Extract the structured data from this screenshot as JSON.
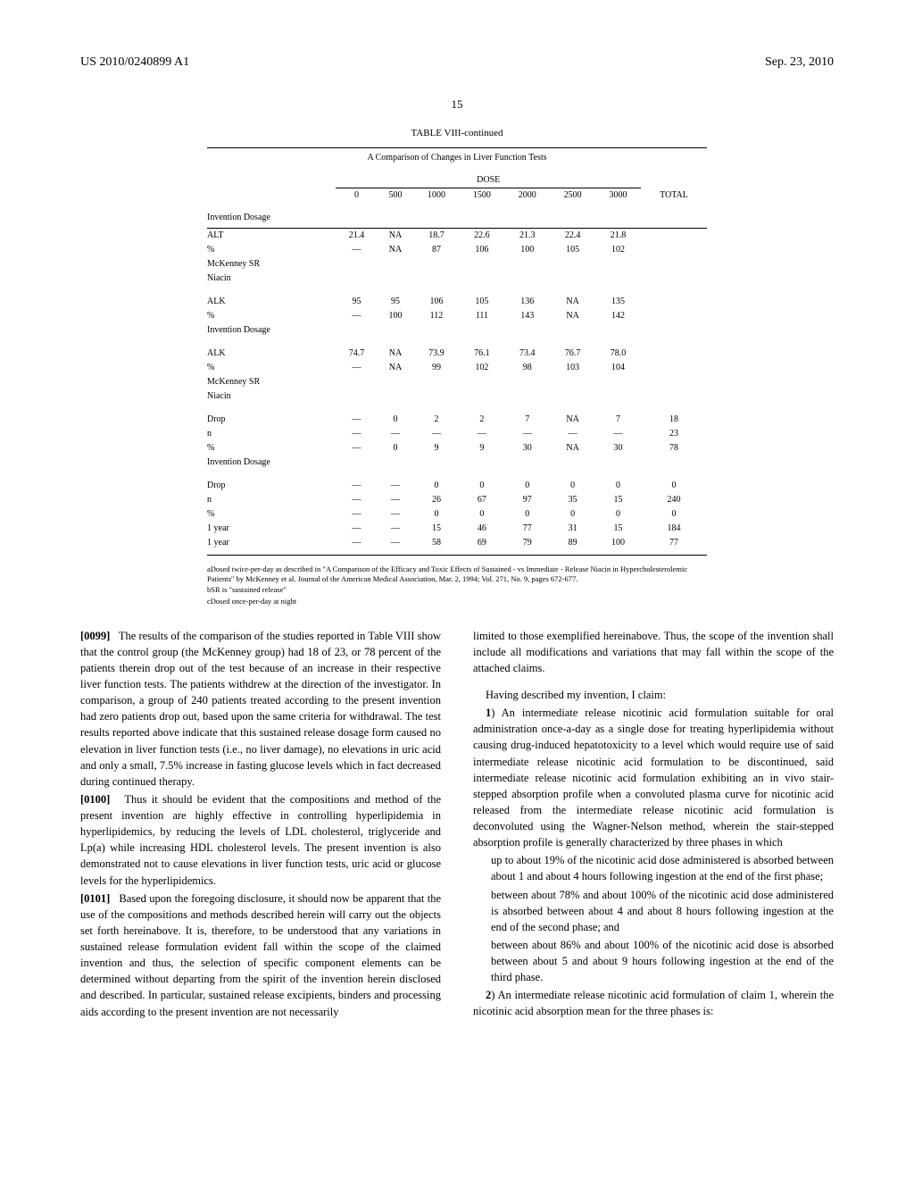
{
  "header": {
    "pub": "US 2010/0240899 A1",
    "date": "Sep. 23, 2010"
  },
  "page_number": "15",
  "table": {
    "title": "TABLE VIII-continued",
    "subtitle": "A Comparison of Changes in Liver Function Tests",
    "dose_label": "DOSE",
    "headers": [
      "",
      "0",
      "500",
      "1000",
      "1500",
      "2000",
      "2500",
      "3000",
      "TOTAL"
    ],
    "section1": "Invention Dosage",
    "block1": [
      [
        "ALT",
        "21.4",
        "NA",
        "18.7",
        "22.6",
        "21.3",
        "22.4",
        "21.8",
        ""
      ],
      [
        "%",
        "—",
        "NA",
        "87",
        "106",
        "100",
        "105",
        "102",
        ""
      ],
      [
        "McKenney SR",
        "",
        "",
        "",
        "",
        "",
        "",
        "",
        ""
      ],
      [
        "Niacin",
        "",
        "",
        "",
        "",
        "",
        "",
        "",
        ""
      ]
    ],
    "block2": [
      [
        "ALK",
        "95",
        "95",
        "106",
        "105",
        "136",
        "NA",
        "135",
        ""
      ],
      [
        "%",
        "—",
        "100",
        "112",
        "111",
        "143",
        "NA",
        "142",
        ""
      ],
      [
        "Invention Dosage",
        "",
        "",
        "",
        "",
        "",
        "",
        "",
        ""
      ]
    ],
    "block3": [
      [
        "ALK",
        "74.7",
        "NA",
        "73.9",
        "76.1",
        "73.4",
        "76.7",
        "78.0",
        ""
      ],
      [
        "%",
        "—",
        "NA",
        "99",
        "102",
        "98",
        "103",
        "104",
        ""
      ],
      [
        "McKenney SR",
        "",
        "",
        "",
        "",
        "",
        "",
        "",
        ""
      ],
      [
        "Niacin",
        "",
        "",
        "",
        "",
        "",
        "",
        "",
        ""
      ]
    ],
    "block4": [
      [
        "Drop",
        "—",
        "0",
        "2",
        "2",
        "7",
        "NA",
        "7",
        "18"
      ],
      [
        "n",
        "—",
        "—",
        "—",
        "—",
        "—",
        "—",
        "—",
        "23"
      ],
      [
        "%",
        "—",
        "0",
        "9",
        "9",
        "30",
        "NA",
        "30",
        "78"
      ],
      [
        "Invention Dosage",
        "",
        "",
        "",
        "",
        "",
        "",
        "",
        ""
      ]
    ],
    "block5": [
      [
        "Drop",
        "—",
        "—",
        "0",
        "0",
        "0",
        "0",
        "0",
        "0"
      ],
      [
        "n",
        "—",
        "—",
        "26",
        "67",
        "97",
        "35",
        "15",
        "240"
      ],
      [
        "%",
        "—",
        "—",
        "0",
        "0",
        "0",
        "0",
        "0",
        "0"
      ],
      [
        "1 year",
        "—",
        "—",
        "15",
        "46",
        "77",
        "31",
        "15",
        "184"
      ],
      [
        "1 year",
        "—",
        "—",
        "58",
        "69",
        "79",
        "89",
        "100",
        "77"
      ]
    ]
  },
  "footnotes": {
    "a": "aDosed twice-per-day as described in \"A Comparison of the Efficacy and Toxic Effects of Sustained - vs Immediate - Release Niacin in Hypercholesterolemic Patients\" by McKenney et al. Journal of the American Medical Association, Mar. 2, 1994; Vol. 271, No. 9, pages 672-677.",
    "b": "bSR is \"sustained release\"",
    "c": "cDosed once-per-day at night"
  },
  "left_column": {
    "p0099_num": "[0099]",
    "p0099": "The results of the comparison of the studies reported in Table VIII show that the control group (the McKenney group) had 18 of 23, or 78 percent of the patients therein drop out of the test because of an increase in their respective liver function tests. The patients withdrew at the direction of the investigator. In comparison, a group of 240 patients treated according to the present invention had zero patients drop out, based upon the same criteria for withdrawal. The test results reported above indicate that this sustained release dosage form caused no elevation in liver function tests (i.e., no liver damage), no elevations in uric acid and only a small, 7.5% increase in fasting glucose levels which in fact decreased during continued therapy.",
    "p0100_num": "[0100]",
    "p0100": "Thus it should be evident that the compositions and method of the present invention are highly effective in controlling hyperlipidemia in hyperlipidemics, by reducing the levels of LDL cholesterol, triglyceride and Lp(a) while increasing HDL cholesterol levels. The present invention is also demonstrated not to cause elevations in liver function tests, uric acid or glucose levels for the hyperlipidemics.",
    "p0101_num": "[0101]",
    "p0101": "Based upon the foregoing disclosure, it should now be apparent that the use of the compositions and methods described herein will carry out the objects set forth hereinabove. It is, therefore, to be understood that any variations in sustained release formulation evident fall within the scope of the claimed invention and thus, the selection of specific component elements can be determined without departing from the spirit of the invention herein disclosed and described. In particular, sustained release excipients, binders and processing aids according to the present invention are not necessarily"
  },
  "right_column": {
    "cont": "limited to those exemplified hereinabove. Thus, the scope of the invention shall include all modifications and variations that may fall within the scope of the attached claims.",
    "claim_intro": "Having described my invention, I claim:",
    "claim1_num": "1",
    "claim1": ") An intermediate release nicotinic acid formulation suitable for oral administration once-a-day as a single dose for treating hyperlipidemia without causing drug-induced hepatotoxicity to a level which would require use of said intermediate release nicotinic acid formulation to be discontinued, said intermediate release nicotinic acid formulation exhibiting an in vivo stair-stepped absorption profile when a convoluted plasma curve for nicotinic acid released from the intermediate release nicotinic acid formulation is deconvoluted using the Wagner-Nelson method, wherein the stair-stepped absorption profile is generally characterized by three phases in which",
    "claim1_a": "up to about 19% of the nicotinic acid dose administered is absorbed between about 1 and about 4 hours following ingestion at the end of the first phase;",
    "claim1_b": "between about 78% and about 100% of the nicotinic acid dose administered is absorbed between about 4 and about 8 hours following ingestion at the end of the second phase; and",
    "claim1_c": "between about 86% and about 100% of the nicotinic acid dose is absorbed between about 5 and about 9 hours following ingestion at the end of the third phase.",
    "claim2_num": "2",
    "claim2": ") An intermediate release nicotinic acid formulation of claim 1, wherein the nicotinic acid absorption mean for the three phases is:"
  }
}
